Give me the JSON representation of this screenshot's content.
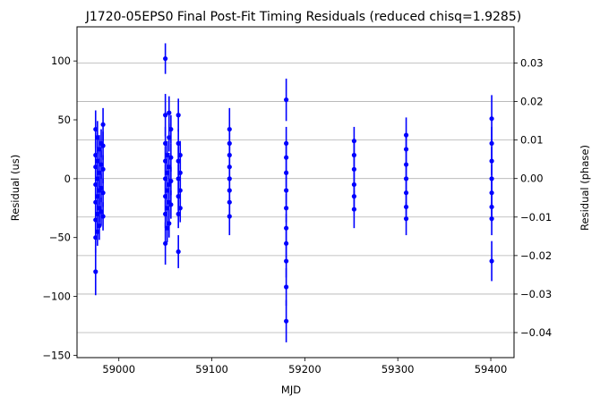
{
  "chart_data": {
    "type": "scatter",
    "title": "J1720-05EPS0 Final Post-Fit Timing Residuals (reduced chisq=1.9285)",
    "xlabel": "MJD",
    "ylabel": "Residual (us)",
    "y2label": "Residual (phase)",
    "xlim": [
      58955,
      59425
    ],
    "ylim": [
      -152,
      129
    ],
    "y2lim": [
      -0.0465,
      0.0394
    ],
    "xticks": [
      {
        "value": 59000,
        "label": "59000"
      },
      {
        "value": 59100,
        "label": "59100"
      },
      {
        "value": 59200,
        "label": "59200"
      },
      {
        "value": 59300,
        "label": "59300"
      },
      {
        "value": 59400,
        "label": "59400"
      }
    ],
    "yticks": [
      {
        "value": -150,
        "label": "−150"
      },
      {
        "value": -100,
        "label": "−100"
      },
      {
        "value": -50,
        "label": "−50"
      },
      {
        "value": 0,
        "label": "0"
      },
      {
        "value": 50,
        "label": "50"
      },
      {
        "value": 100,
        "label": "100"
      }
    ],
    "y2ticks": [
      {
        "value": -0.04,
        "label": "−0.04"
      },
      {
        "value": -0.03,
        "label": "−0.03"
      },
      {
        "value": -0.02,
        "label": "−0.02"
      },
      {
        "value": -0.01,
        "label": "−0.01"
      },
      {
        "value": 0.0,
        "label": "0.00"
      },
      {
        "value": 0.01,
        "label": "0.01"
      },
      {
        "value": 0.02,
        "label": "0.02"
      },
      {
        "value": 0.03,
        "label": "0.03"
      }
    ],
    "grid": "horizontal lines at right-axis ticks",
    "marker_color": "#0000ff",
    "series": [
      {
        "points": [
          {
            "x": 58975,
            "y": 42,
            "err": 16
          },
          {
            "x": 58975,
            "y": 20,
            "err": 12
          },
          {
            "x": 58975,
            "y": 10,
            "err": 12
          },
          {
            "x": 58975,
            "y": -5,
            "err": 12
          },
          {
            "x": 58975,
            "y": -20,
            "err": 12
          },
          {
            "x": 58975,
            "y": -35,
            "err": 12
          },
          {
            "x": 58975,
            "y": -50,
            "err": 13
          },
          {
            "x": 58975,
            "y": -79,
            "err": 20
          },
          {
            "x": 58977,
            "y": 35,
            "err": 14
          },
          {
            "x": 58977,
            "y": 15,
            "err": 12
          },
          {
            "x": 58977,
            "y": 0,
            "err": 12
          },
          {
            "x": 58977,
            "y": -15,
            "err": 12
          },
          {
            "x": 58977,
            "y": -30,
            "err": 12
          },
          {
            "x": 58977,
            "y": -45,
            "err": 12
          },
          {
            "x": 58979,
            "y": 25,
            "err": 12
          },
          {
            "x": 58979,
            "y": 5,
            "err": 12
          },
          {
            "x": 58979,
            "y": -10,
            "err": 12
          },
          {
            "x": 58979,
            "y": -25,
            "err": 12
          },
          {
            "x": 58979,
            "y": -40,
            "err": 12
          },
          {
            "x": 58981,
            "y": 30,
            "err": 12
          },
          {
            "x": 58981,
            "y": 12,
            "err": 12
          },
          {
            "x": 58981,
            "y": -8,
            "err": 12
          },
          {
            "x": 58981,
            "y": -28,
            "err": 12
          },
          {
            "x": 58983,
            "y": 46,
            "err": 14
          },
          {
            "x": 58983,
            "y": 28,
            "err": 12
          },
          {
            "x": 58983,
            "y": 8,
            "err": 12
          },
          {
            "x": 58983,
            "y": -12,
            "err": 12
          },
          {
            "x": 58983,
            "y": -32,
            "err": 12
          },
          {
            "x": 59050,
            "y": 102,
            "err": 13
          },
          {
            "x": 59050,
            "y": 54,
            "err": 18
          },
          {
            "x": 59050,
            "y": 30,
            "err": 14
          },
          {
            "x": 59050,
            "y": 15,
            "err": 12
          },
          {
            "x": 59050,
            "y": 0,
            "err": 12
          },
          {
            "x": 59050,
            "y": -15,
            "err": 12
          },
          {
            "x": 59050,
            "y": -30,
            "err": 12
          },
          {
            "x": 59050,
            "y": -55,
            "err": 18
          },
          {
            "x": 59052,
            "y": 20,
            "err": 12
          },
          {
            "x": 59052,
            "y": 5,
            "err": 12
          },
          {
            "x": 59052,
            "y": -10,
            "err": 12
          },
          {
            "x": 59052,
            "y": -25,
            "err": 12
          },
          {
            "x": 59052,
            "y": -42,
            "err": 12
          },
          {
            "x": 59054,
            "y": 56,
            "err": 14
          },
          {
            "x": 59054,
            "y": 35,
            "err": 12
          },
          {
            "x": 59054,
            "y": 10,
            "err": 12
          },
          {
            "x": 59054,
            "y": -5,
            "err": 12
          },
          {
            "x": 59054,
            "y": -20,
            "err": 12
          },
          {
            "x": 59054,
            "y": -38,
            "err": 12
          },
          {
            "x": 59056,
            "y": 42,
            "err": 12
          },
          {
            "x": 59056,
            "y": 18,
            "err": 12
          },
          {
            "x": 59056,
            "y": -2,
            "err": 12
          },
          {
            "x": 59056,
            "y": -22,
            "err": 12
          },
          {
            "x": 59064,
            "y": 54,
            "err": 14
          },
          {
            "x": 59064,
            "y": 30,
            "err": 12
          },
          {
            "x": 59064,
            "y": 15,
            "err": 12
          },
          {
            "x": 59064,
            "y": 0,
            "err": 12
          },
          {
            "x": 59064,
            "y": -15,
            "err": 12
          },
          {
            "x": 59064,
            "y": -30,
            "err": 12
          },
          {
            "x": 59064,
            "y": -62,
            "err": 14
          },
          {
            "x": 59066,
            "y": 20,
            "err": 12
          },
          {
            "x": 59066,
            "y": 5,
            "err": 12
          },
          {
            "x": 59066,
            "y": -10,
            "err": 12
          },
          {
            "x": 59066,
            "y": -25,
            "err": 12
          },
          {
            "x": 59119,
            "y": 42,
            "err": 18
          },
          {
            "x": 59119,
            "y": 30,
            "err": 12
          },
          {
            "x": 59119,
            "y": 20,
            "err": 12
          },
          {
            "x": 59119,
            "y": 10,
            "err": 12
          },
          {
            "x": 59119,
            "y": 0,
            "err": 12
          },
          {
            "x": 59119,
            "y": -10,
            "err": 12
          },
          {
            "x": 59119,
            "y": -20,
            "err": 12
          },
          {
            "x": 59119,
            "y": -32,
            "err": 16
          },
          {
            "x": 59180,
            "y": 67,
            "err": 18
          },
          {
            "x": 59180,
            "y": 30,
            "err": 14
          },
          {
            "x": 59180,
            "y": 18,
            "err": 12
          },
          {
            "x": 59180,
            "y": 5,
            "err": 12
          },
          {
            "x": 59180,
            "y": -10,
            "err": 12
          },
          {
            "x": 59180,
            "y": -25,
            "err": 12
          },
          {
            "x": 59180,
            "y": -42,
            "err": 12
          },
          {
            "x": 59180,
            "y": -55,
            "err": 12
          },
          {
            "x": 59180,
            "y": -70,
            "err": 14
          },
          {
            "x": 59180,
            "y": -92,
            "err": 16
          },
          {
            "x": 59180,
            "y": -121,
            "err": 18
          },
          {
            "x": 59253,
            "y": 32,
            "err": 12
          },
          {
            "x": 59253,
            "y": 20,
            "err": 12
          },
          {
            "x": 59253,
            "y": 8,
            "err": 12
          },
          {
            "x": 59253,
            "y": -5,
            "err": 12
          },
          {
            "x": 59253,
            "y": -15,
            "err": 12
          },
          {
            "x": 59253,
            "y": -26,
            "err": 16
          },
          {
            "x": 59309,
            "y": 37,
            "err": 15
          },
          {
            "x": 59309,
            "y": 25,
            "err": 12
          },
          {
            "x": 59309,
            "y": 12,
            "err": 12
          },
          {
            "x": 59309,
            "y": 0,
            "err": 12
          },
          {
            "x": 59309,
            "y": -12,
            "err": 12
          },
          {
            "x": 59309,
            "y": -24,
            "err": 12
          },
          {
            "x": 59309,
            "y": -34,
            "err": 14
          },
          {
            "x": 59401,
            "y": 51,
            "err": 20
          },
          {
            "x": 59401,
            "y": 30,
            "err": 14
          },
          {
            "x": 59401,
            "y": 15,
            "err": 12
          },
          {
            "x": 59401,
            "y": 0,
            "err": 12
          },
          {
            "x": 59401,
            "y": -12,
            "err": 12
          },
          {
            "x": 59401,
            "y": -24,
            "err": 12
          },
          {
            "x": 59401,
            "y": -34,
            "err": 14
          },
          {
            "x": 59401,
            "y": -70,
            "err": 17
          }
        ]
      }
    ]
  }
}
